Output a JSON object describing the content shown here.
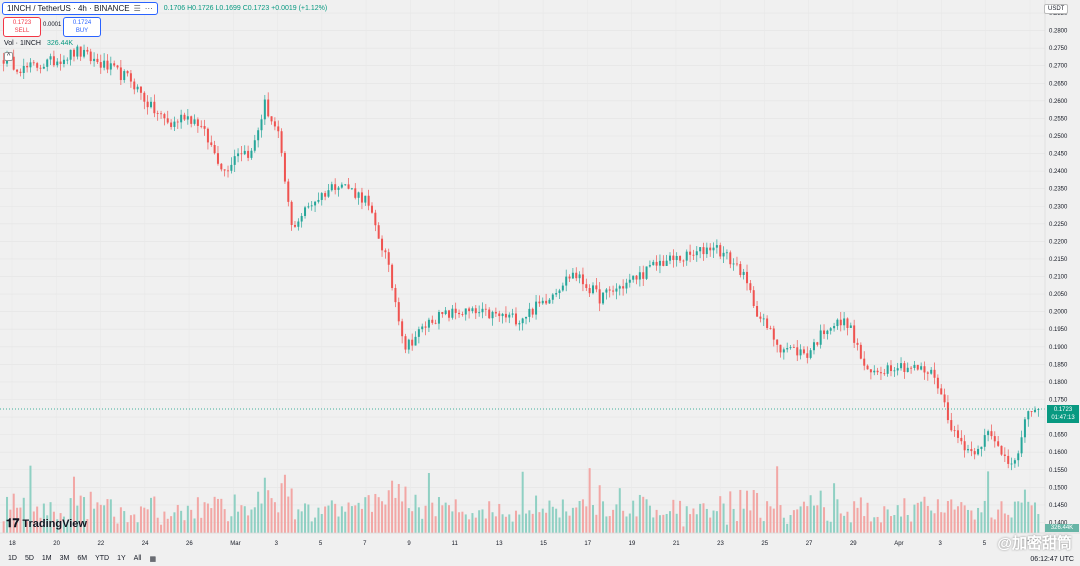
{
  "header": {
    "symbol": "1INCH / TetherUS · 4h · BINANCE",
    "ohlc": "0.1706 H0.1726 L0.1699 C0.1723 +0.0019 (+1.12%)"
  },
  "trade": {
    "sell_price": "0.1723",
    "sell_label": "SELL",
    "spread": "0.0001",
    "buy_price": "0.1724",
    "buy_label": "BUY"
  },
  "volume": {
    "label": "Vol · 1INCH",
    "value": "326.44K",
    "axis_label": "326.44K"
  },
  "currency": "USDT",
  "last_price": {
    "value": "0.1723",
    "countdown": "01:47:13"
  },
  "brand": "TradingView",
  "watermark": "@加密甜筒",
  "timeframes": [
    "1D",
    "5D",
    "1M",
    "3M",
    "6M",
    "YTD",
    "1Y",
    "All"
  ],
  "clock": "06:12:47 UTC",
  "colors": {
    "up": "#26a69a",
    "down": "#ef5350",
    "up_vol": "#8fd0c3",
    "down_vol": "#f2a7a5"
  },
  "chart_data": {
    "type": "candlestick",
    "y_ticks": [
      "0.2850",
      "0.2800",
      "0.2750",
      "0.2700",
      "0.2650",
      "0.2600",
      "0.2550",
      "0.2500",
      "0.2450",
      "0.2400",
      "0.2350",
      "0.2300",
      "0.2250",
      "0.2200",
      "0.2150",
      "0.2100",
      "0.2050",
      "0.2000",
      "0.1950",
      "0.1900",
      "0.1850",
      "0.1800",
      "0.1750",
      "0.1700",
      "0.1650",
      "0.1600",
      "0.1550",
      "0.1500",
      "0.1450",
      "0.1400"
    ],
    "ylim": [
      0.137,
      0.287
    ],
    "x_ticks": [
      "18",
      "20",
      "22",
      "24",
      "26",
      "Mar",
      "3",
      "5",
      "7",
      "9",
      "11",
      "13",
      "15",
      "17",
      "19",
      "21",
      "23",
      "25",
      "27",
      "29",
      "Apr",
      "3",
      "5",
      "7"
    ],
    "candle_count": 310,
    "path": [
      [
        0,
        0.272
      ],
      [
        6,
        0.269
      ],
      [
        14,
        0.271
      ],
      [
        22,
        0.274
      ],
      [
        30,
        0.27
      ],
      [
        38,
        0.266
      ],
      [
        44,
        0.258
      ],
      [
        50,
        0.253
      ],
      [
        54,
        0.256
      ],
      [
        58,
        0.254
      ],
      [
        62,
        0.247
      ],
      [
        66,
        0.24
      ],
      [
        70,
        0.246
      ],
      [
        74,
        0.245
      ],
      [
        78,
        0.259
      ],
      [
        82,
        0.25
      ],
      [
        86,
        0.224
      ],
      [
        92,
        0.231
      ],
      [
        100,
        0.237
      ],
      [
        108,
        0.232
      ],
      [
        114,
        0.216
      ],
      [
        120,
        0.19
      ],
      [
        128,
        0.198
      ],
      [
        136,
        0.2
      ],
      [
        146,
        0.199
      ],
      [
        154,
        0.198
      ],
      [
        160,
        0.202
      ],
      [
        170,
        0.211
      ],
      [
        178,
        0.204
      ],
      [
        186,
        0.208
      ],
      [
        196,
        0.214
      ],
      [
        206,
        0.216
      ],
      [
        212,
        0.219
      ],
      [
        220,
        0.212
      ],
      [
        226,
        0.198
      ],
      [
        232,
        0.19
      ],
      [
        240,
        0.188
      ],
      [
        246,
        0.196
      ],
      [
        252,
        0.197
      ],
      [
        258,
        0.182
      ],
      [
        266,
        0.185
      ],
      [
        272,
        0.184
      ],
      [
        278,
        0.182
      ],
      [
        284,
        0.165
      ],
      [
        289,
        0.16
      ],
      [
        294,
        0.165
      ],
      [
        300,
        0.158
      ],
      [
        303,
        0.159
      ],
      [
        306,
        0.172
      ],
      [
        309,
        0.1723
      ]
    ]
  }
}
